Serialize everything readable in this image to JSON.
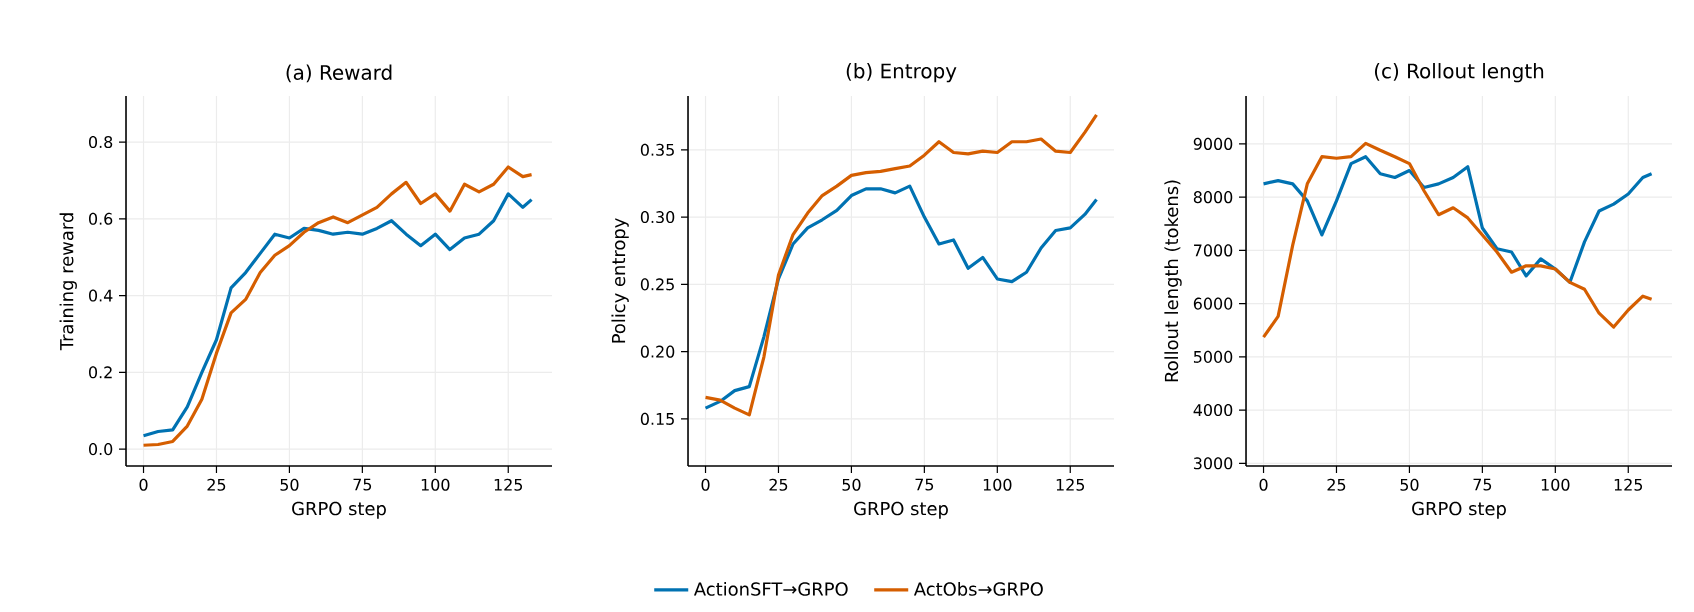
{
  "chart_data": [
    {
      "type": "line",
      "title": "(a) Reward",
      "xlabel": "GRPO step",
      "ylabel": "Training reward",
      "grid": true,
      "legend": "bottom",
      "xlim": [
        -6,
        140
      ],
      "xticks": [
        0,
        25,
        50,
        75,
        100,
        125
      ],
      "ylim": [
        -0.044,
        0.92
      ],
      "yticks": [
        {
          "value": 0,
          "label": "0.0"
        },
        {
          "value": 0.2,
          "label": "0.2"
        },
        {
          "value": 0.4,
          "label": "0.4"
        },
        {
          "value": 0.6,
          "label": "0.6"
        },
        {
          "value": 0.8,
          "label": "0.8"
        }
      ],
      "x": [
        0,
        5,
        10,
        15,
        20,
        25,
        30,
        35,
        40,
        45,
        50,
        55,
        60,
        65,
        70,
        75,
        80,
        85,
        90,
        95,
        100,
        105,
        110,
        115,
        120,
        125,
        130,
        133
      ],
      "series": [
        {
          "name": "ActionSFT→GRPO",
          "color": "#0072b2",
          "values": [
            0.035,
            0.046,
            0.05,
            0.11,
            0.2,
            0.285,
            0.42,
            0.46,
            0.51,
            0.56,
            0.55,
            0.575,
            0.57,
            0.56,
            0.565,
            0.56,
            0.575,
            0.595,
            0.56,
            0.53,
            0.56,
            0.52,
            0.55,
            0.56,
            0.595,
            0.665,
            0.63,
            0.65
          ]
        },
        {
          "name": "ActObs→GRPO",
          "color": "#d55e00",
          "values": [
            0.01,
            0.012,
            0.02,
            0.06,
            0.13,
            0.25,
            0.355,
            0.39,
            0.46,
            0.505,
            0.53,
            0.565,
            0.59,
            0.605,
            0.59,
            0.61,
            0.63,
            0.665,
            0.695,
            0.64,
            0.665,
            0.62,
            0.69,
            0.67,
            0.69,
            0.735,
            0.71,
            0.715
          ]
        }
      ]
    },
    {
      "type": "line",
      "title": "(b) Entropy",
      "xlabel": "GRPO step",
      "ylabel": "Policy entropy",
      "grid": true,
      "xlim": [
        -6,
        140
      ],
      "xticks": [
        0,
        25,
        50,
        75,
        100,
        125
      ],
      "ylim": [
        0.115,
        0.39
      ],
      "yticks": [
        0.15,
        {
          "value": 0.2,
          "label": "0.20"
        },
        0.25,
        {
          "value": 0.3,
          "label": "0.30"
        },
        0.35
      ],
      "x": [
        0,
        5,
        10,
        15,
        20,
        25,
        30,
        35,
        40,
        45,
        50,
        55,
        60,
        65,
        70,
        75,
        80,
        85,
        90,
        95,
        100,
        105,
        110,
        115,
        120,
        125,
        130,
        134
      ],
      "series": [
        {
          "color": "#0072b2",
          "values": [
            0.158,
            0.163,
            0.171,
            0.174,
            0.211,
            0.254,
            0.28,
            0.292,
            0.298,
            0.305,
            0.316,
            0.321,
            0.321,
            0.318,
            0.323,
            0.3,
            0.28,
            0.283,
            0.262,
            0.27,
            0.254,
            0.252,
            0.259,
            0.277,
            0.29,
            0.292,
            0.302,
            0.313
          ]
        },
        {
          "color": "#d55e00",
          "values": [
            0.166,
            0.164,
            0.158,
            0.153,
            0.196,
            0.257,
            0.287,
            0.303,
            0.316,
            0.323,
            0.331,
            0.333,
            0.334,
            0.336,
            0.338,
            0.346,
            0.356,
            0.348,
            0.347,
            0.349,
            0.348,
            0.356,
            0.356,
            0.358,
            0.349,
            0.348,
            0.363,
            0.376
          ]
        }
      ]
    },
    {
      "type": "line",
      "title": "(c) Rollout length",
      "xlabel": "GRPO step",
      "ylabel": "Rollout length (tokens)",
      "grid": true,
      "xlim": [
        -6,
        140
      ],
      "xticks": [
        0,
        25,
        50,
        75,
        100,
        125
      ],
      "ylim": [
        2950,
        9900
      ],
      "yticks": [
        3000,
        4000,
        5000,
        6000,
        7000,
        8000,
        9000
      ],
      "x": [
        0,
        5,
        10,
        15,
        20,
        25,
        30,
        35,
        40,
        45,
        50,
        55,
        60,
        65,
        70,
        75,
        80,
        85,
        90,
        95,
        100,
        105,
        110,
        115,
        120,
        125,
        130,
        133
      ],
      "series": [
        {
          "color": "#0072b2",
          "values": [
            8250,
            8310,
            8250,
            7930,
            7290,
            7930,
            8630,
            8760,
            8440,
            8370,
            8500,
            8180,
            8250,
            8370,
            8570,
            7420,
            7030,
            6970,
            6520,
            6840,
            6650,
            6400,
            7160,
            7740,
            7870,
            8060,
            8370,
            8440
          ]
        },
        {
          "color": "#d55e00",
          "values": [
            5370,
            5760,
            7100,
            8250,
            8760,
            8730,
            8760,
            9010,
            8880,
            8760,
            8630,
            8120,
            7670,
            7800,
            7610,
            7290,
            6970,
            6590,
            6710,
            6710,
            6650,
            6400,
            6270,
            5820,
            5560,
            5880,
            6140,
            6080
          ]
        }
      ]
    }
  ]
}
